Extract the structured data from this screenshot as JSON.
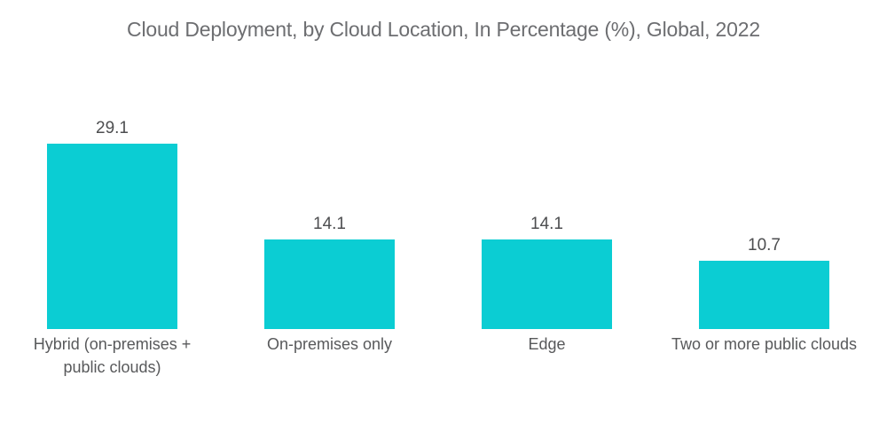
{
  "title": "Cloud Deployment, by Cloud Location, In Percentage (%), Global, 2022",
  "chart_data": {
    "type": "bar",
    "title": "Cloud Deployment, by Cloud Location, In Percentage (%), Global, 2022",
    "categories": [
      "Hybrid (on-premises +\npublic clouds)",
      "On-premises only",
      "Edge",
      "Two or more public clouds"
    ],
    "values": [
      29.1,
      14.1,
      14.1,
      10.7
    ],
    "value_labels": [
      "29.1",
      "14.1",
      "14.1",
      "10.7"
    ],
    "xlabel": "",
    "ylabel": "",
    "ylim": [
      0,
      30
    ],
    "grid": false,
    "legend": false,
    "bar_color": "#0bcdd3"
  },
  "colors": {
    "bar": "#0bcdd3",
    "title_text": "#6d6e71",
    "value_text": "#4d4e50",
    "category_text": "#58595b",
    "background": "#ffffff"
  }
}
